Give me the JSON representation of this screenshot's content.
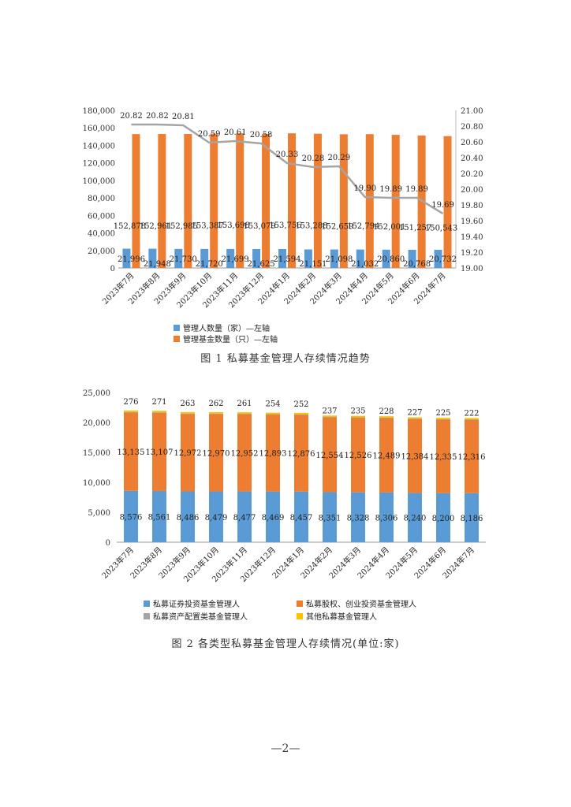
{
  "chart_data": [
    {
      "type": "bar+line",
      "title": "",
      "categories": [
        "2023年7月",
        "2023年8月",
        "2023年9月",
        "2023年10月",
        "2023年11月",
        "2023年12月",
        "2024年1月",
        "2024年2月",
        "2024年3月",
        "2024年4月",
        "2024年5月",
        "2024年6月",
        "2024年7月"
      ],
      "series": [
        {
          "name": "管理人数量（家）—左轴",
          "kind": "bar",
          "axis": "left",
          "color": "#5B9BD5",
          "values": [
            21996,
            21948,
            21730,
            21720,
            21699,
            21625,
            21594,
            21151,
            21098,
            21032,
            20860,
            20768,
            20732
          ],
          "labels": [
            "21,996",
            "21,948",
            "21,730",
            "21,720",
            "21,699",
            "21,625",
            "21,594",
            "21,151",
            "21,098",
            "21,032",
            "20,860",
            "20,768",
            "20,732"
          ]
        },
        {
          "name": "管理基金数量（只）—左轴",
          "kind": "bar",
          "axis": "left",
          "color": "#ED7D31",
          "values": [
            152878,
            152961,
            152985,
            153387,
            153698,
            153079,
            153756,
            153288,
            152659,
            152794,
            152001,
            151257,
            150543
          ],
          "labels": [
            "152,878",
            "152,961",
            "152,985",
            "153,387",
            "153,698",
            "153,079",
            "153,756",
            "153,288",
            "152,659",
            "152,794",
            "152,001",
            "151,257",
            "150,543"
          ]
        },
        {
          "name": "",
          "kind": "line",
          "axis": "right",
          "color": "#A5A5A5",
          "values": [
            20.82,
            20.82,
            20.81,
            20.59,
            20.61,
            20.58,
            20.33,
            20.28,
            20.29,
            19.9,
            19.89,
            19.89,
            19.69
          ],
          "labels": [
            "20.82",
            "20.82",
            "20.81",
            "20.59",
            "20.61",
            "20.58",
            "20.33",
            "20.28",
            "20.29",
            "19.90",
            "19.89",
            "19.89",
            "19.69"
          ]
        }
      ],
      "left_axis": {
        "min": 0,
        "max": 180000,
        "ticks": [
          "0",
          "20,000",
          "40,000",
          "60,000",
          "80,000",
          "100,000",
          "120,000",
          "140,000",
          "160,000",
          "180,000"
        ]
      },
      "right_axis": {
        "min": 19.0,
        "max": 21.0,
        "ticks": [
          "19.00",
          "19.20",
          "19.40",
          "19.60",
          "19.80",
          "20.00",
          "20.20",
          "20.40",
          "20.60",
          "20.80",
          "21.00"
        ]
      },
      "legend": [
        "管理人数量（家）—左轴",
        "管理基金数量（只）—左轴"
      ],
      "caption": "图 1  私募基金管理人存续情况趋势"
    },
    {
      "type": "stacked-bar",
      "categories": [
        "2023年7月",
        "2023年8月",
        "2023年9月",
        "2023年10月",
        "2023年11月",
        "2023年12月",
        "2024年1月",
        "2024年2月",
        "2024年3月",
        "2024年4月",
        "2024年5月",
        "2024年6月",
        "2024年7月"
      ],
      "series": [
        {
          "name": "私募证券投资基金管理人",
          "color": "#5B9BD5",
          "values": [
            8576,
            8561,
            8486,
            8479,
            8477,
            8469,
            8457,
            8351,
            8328,
            8306,
            8240,
            8200,
            8186
          ],
          "labels": [
            "8,576",
            "8,561",
            "8,486",
            "8,479",
            "8,477",
            "8,469",
            "8,457",
            "8,351",
            "8,328",
            "8,306",
            "8,240",
            "8,200",
            "8,186"
          ]
        },
        {
          "name": "私募股权、创业投资基金管理人",
          "color": "#ED7D31",
          "values": [
            13135,
            13107,
            12972,
            12970,
            12952,
            12893,
            12876,
            12554,
            12526,
            12489,
            12384,
            12335,
            12316
          ],
          "labels": [
            "13,135",
            "13,107",
            "12,972",
            "12,970",
            "12,952",
            "12,893",
            "12,876",
            "12,554",
            "12,526",
            "12,489",
            "12,384",
            "12,335",
            "12,316"
          ]
        },
        {
          "name": "私募资产配置类基金管理人",
          "color": "#A5A5A5",
          "values": [
            9,
            9,
            9,
            9,
            9,
            9,
            9,
            9,
            9,
            9,
            9,
            9,
            9
          ]
        },
        {
          "name": "其他私募基金管理人",
          "color": "#FFC000",
          "values": [
            276,
            271,
            263,
            262,
            261,
            254,
            252,
            237,
            235,
            228,
            227,
            225,
            222
          ],
          "labels": [
            "276",
            "271",
            "263",
            "262",
            "261",
            "254",
            "252",
            "237",
            "235",
            "228",
            "227",
            "225",
            "222"
          ]
        }
      ],
      "left_axis": {
        "min": 0,
        "max": 25000,
        "ticks": [
          "0",
          "5,000",
          "10,000",
          "15,000",
          "20,000",
          "25,000"
        ]
      },
      "legend": [
        "私募证券投资基金管理人",
        "私募股权、创业投资基金管理人",
        "私募资产配置类基金管理人",
        "其他私募基金管理人"
      ],
      "caption": "图 2  各类型私募基金管理人存续情况(单位:家)"
    }
  ],
  "page_number": "—2—"
}
